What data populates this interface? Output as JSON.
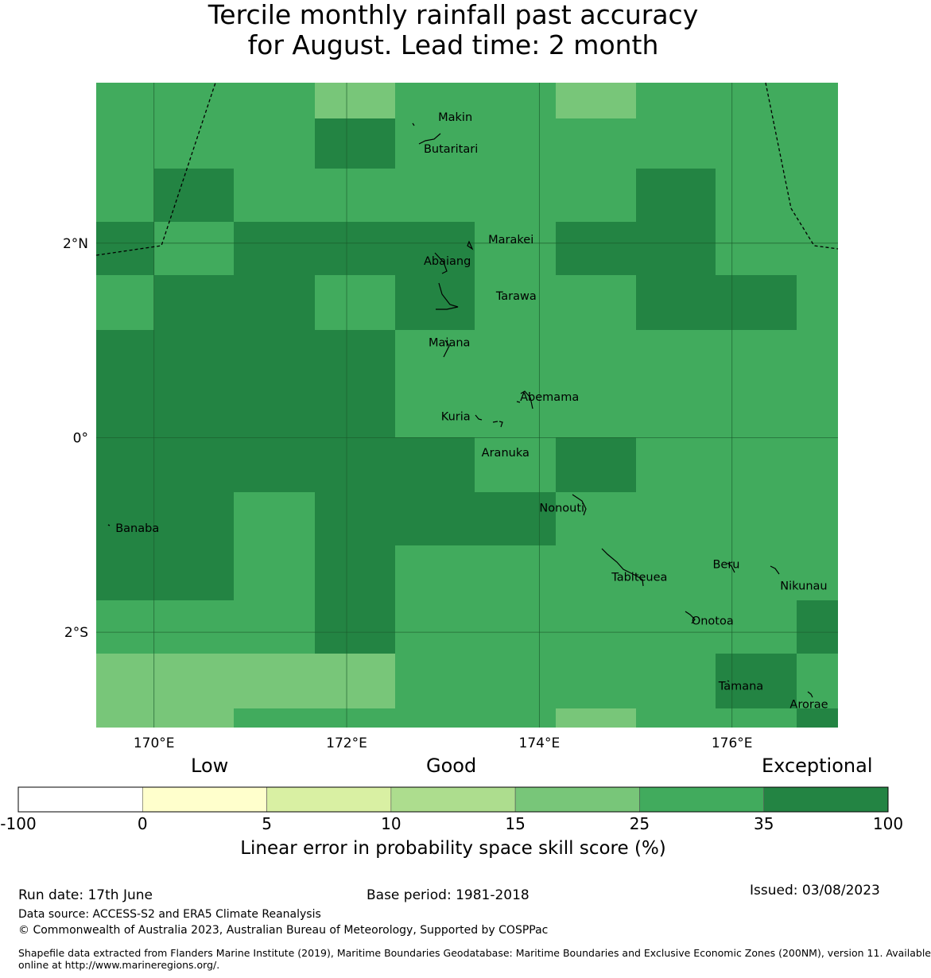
{
  "title_line1": "Tercile monthly rainfall past accuracy",
  "title_line2": "for August. Lead time: 2 month",
  "map": {
    "lon_min": 169.4,
    "lon_max": 177.1,
    "lat_min": -2.98,
    "lat_max": 3.65,
    "y_ticks": [
      {
        "value": 2,
        "label": "2°N"
      },
      {
        "value": 0,
        "label": "0°"
      },
      {
        "value": -2,
        "label": "2°S"
      }
    ],
    "x_ticks": [
      {
        "value": 170,
        "label": "170°E"
      },
      {
        "value": 172,
        "label": "172°E"
      },
      {
        "value": 174,
        "label": "174°E"
      },
      {
        "value": 176,
        "label": "176°E"
      }
    ],
    "grid_lon_edges": [
      169.4,
      170.0,
      170.83,
      171.67,
      172.5,
      173.33,
      174.17,
      175.0,
      175.83,
      176.67,
      177.1
    ],
    "grid_lat_edges": [
      3.65,
      3.28,
      2.77,
      2.22,
      1.67,
      1.11,
      0.0,
      -0.56,
      -1.11,
      -1.67,
      -2.22,
      -2.78,
      -2.98
    ],
    "grid_classes": [
      [
        "e25",
        "e25",
        "e25",
        "g15",
        "e25",
        "e25",
        "g15",
        "e25",
        "e25",
        "e25"
      ],
      [
        "e25",
        "e25",
        "e25",
        "x35",
        "e25",
        "e25",
        "e25",
        "e25",
        "e25",
        "e25"
      ],
      [
        "e25",
        "x35",
        "e25",
        "e25",
        "e25",
        "e25",
        "e25",
        "x35",
        "e25",
        "e25"
      ],
      [
        "x35",
        "e25",
        "x35",
        "x35",
        "x35",
        "e25",
        "x35",
        "x35",
        "e25",
        "e25"
      ],
      [
        "e25",
        "x35",
        "x35",
        "e25",
        "x35",
        "e25",
        "e25",
        "x35",
        "x35",
        "e25"
      ],
      [
        "x35",
        "x35",
        "x35",
        "x35",
        "e25",
        "e25",
        "e25",
        "e25",
        "e25",
        "e25"
      ],
      [
        "x35",
        "x35",
        "x35",
        "x35",
        "x35",
        "e25",
        "x35",
        "e25",
        "e25",
        "e25"
      ],
      [
        "x35",
        "x35",
        "e25",
        "x35",
        "x35",
        "x35",
        "e25",
        "e25",
        "e25",
        "e25"
      ],
      [
        "x35",
        "x35",
        "e25",
        "x35",
        "e25",
        "e25",
        "e25",
        "e25",
        "e25",
        "e25"
      ],
      [
        "e25",
        "e25",
        "e25",
        "x35",
        "e25",
        "e25",
        "e25",
        "e25",
        "e25",
        "x35"
      ],
      [
        "g15",
        "g15",
        "g15",
        "g15",
        "e25",
        "e25",
        "e25",
        "e25",
        "x35",
        "e25"
      ],
      [
        "g15",
        "g15",
        "e25",
        "e25",
        "e25",
        "e25",
        "g15",
        "e25",
        "e25",
        "x35"
      ]
    ],
    "colors": {
      "g15": "#78c679",
      "e25": "#41ab5d",
      "x35": "#238443"
    },
    "places": [
      {
        "name": "Makin",
        "lon": 172.95,
        "lat": 3.3
      },
      {
        "name": "Butaritari",
        "lon": 172.8,
        "lat": 2.97
      },
      {
        "name": "Marakei",
        "lon": 173.47,
        "lat": 2.04
      },
      {
        "name": "Abaiang",
        "lon": 172.8,
        "lat": 1.82
      },
      {
        "name": "Tarawa",
        "lon": 173.55,
        "lat": 1.46
      },
      {
        "name": "Maiana",
        "lon": 172.85,
        "lat": 0.98
      },
      {
        "name": "Abemama",
        "lon": 173.8,
        "lat": 0.42
      },
      {
        "name": "Kuria",
        "lon": 172.98,
        "lat": 0.22
      },
      {
        "name": "Aranuka",
        "lon": 173.4,
        "lat": -0.15
      },
      {
        "name": "Nonouti",
        "lon": 174.0,
        "lat": -0.72
      },
      {
        "name": "Banaba",
        "lon": 169.6,
        "lat": -0.93
      },
      {
        "name": "Beru",
        "lon": 175.8,
        "lat": -1.3
      },
      {
        "name": "Tabiteuea",
        "lon": 174.75,
        "lat": -1.43
      },
      {
        "name": "Nikunau",
        "lon": 176.5,
        "lat": -1.52
      },
      {
        "name": "Onotoa",
        "lon": 175.58,
        "lat": -1.88
      },
      {
        "name": "Tamana",
        "lon": 175.86,
        "lat": -2.55
      },
      {
        "name": "Arorae",
        "lon": 176.6,
        "lat": -2.74
      }
    ]
  },
  "colorbar": {
    "headers": [
      "Low",
      "Good",
      "Exceptional"
    ],
    "ticks": [
      "-100",
      "0",
      "5",
      "10",
      "15",
      "25",
      "35",
      "100"
    ],
    "colors": [
      "#ffffff",
      "#ffffcc",
      "#d9f0a3",
      "#addd8e",
      "#78c679",
      "#41ab5d",
      "#238443"
    ],
    "title": "Linear error in probability space skill score (%)"
  },
  "footer": {
    "run_date": "Run date: 17th June",
    "base_period": "Base period: 1981-2018",
    "issued": "Issued: 03/08/2023",
    "data_source": "Data source: ACCESS-S2 and ERA5 Climate Reanalysis",
    "copyright": "© Commonwealth of Australia 2023, Australian Bureau of Meteorology, Supported by COSPPac",
    "shapefile_line1": "Shapefile data extracted from Flanders Marine Institute (2019), Maritime Boundaries Geodatabase: Maritime Boundaries and Exclusive Economic Zones (200NM), version 11. Available",
    "shapefile_line2": "online at http://www.marineregions.org/."
  }
}
